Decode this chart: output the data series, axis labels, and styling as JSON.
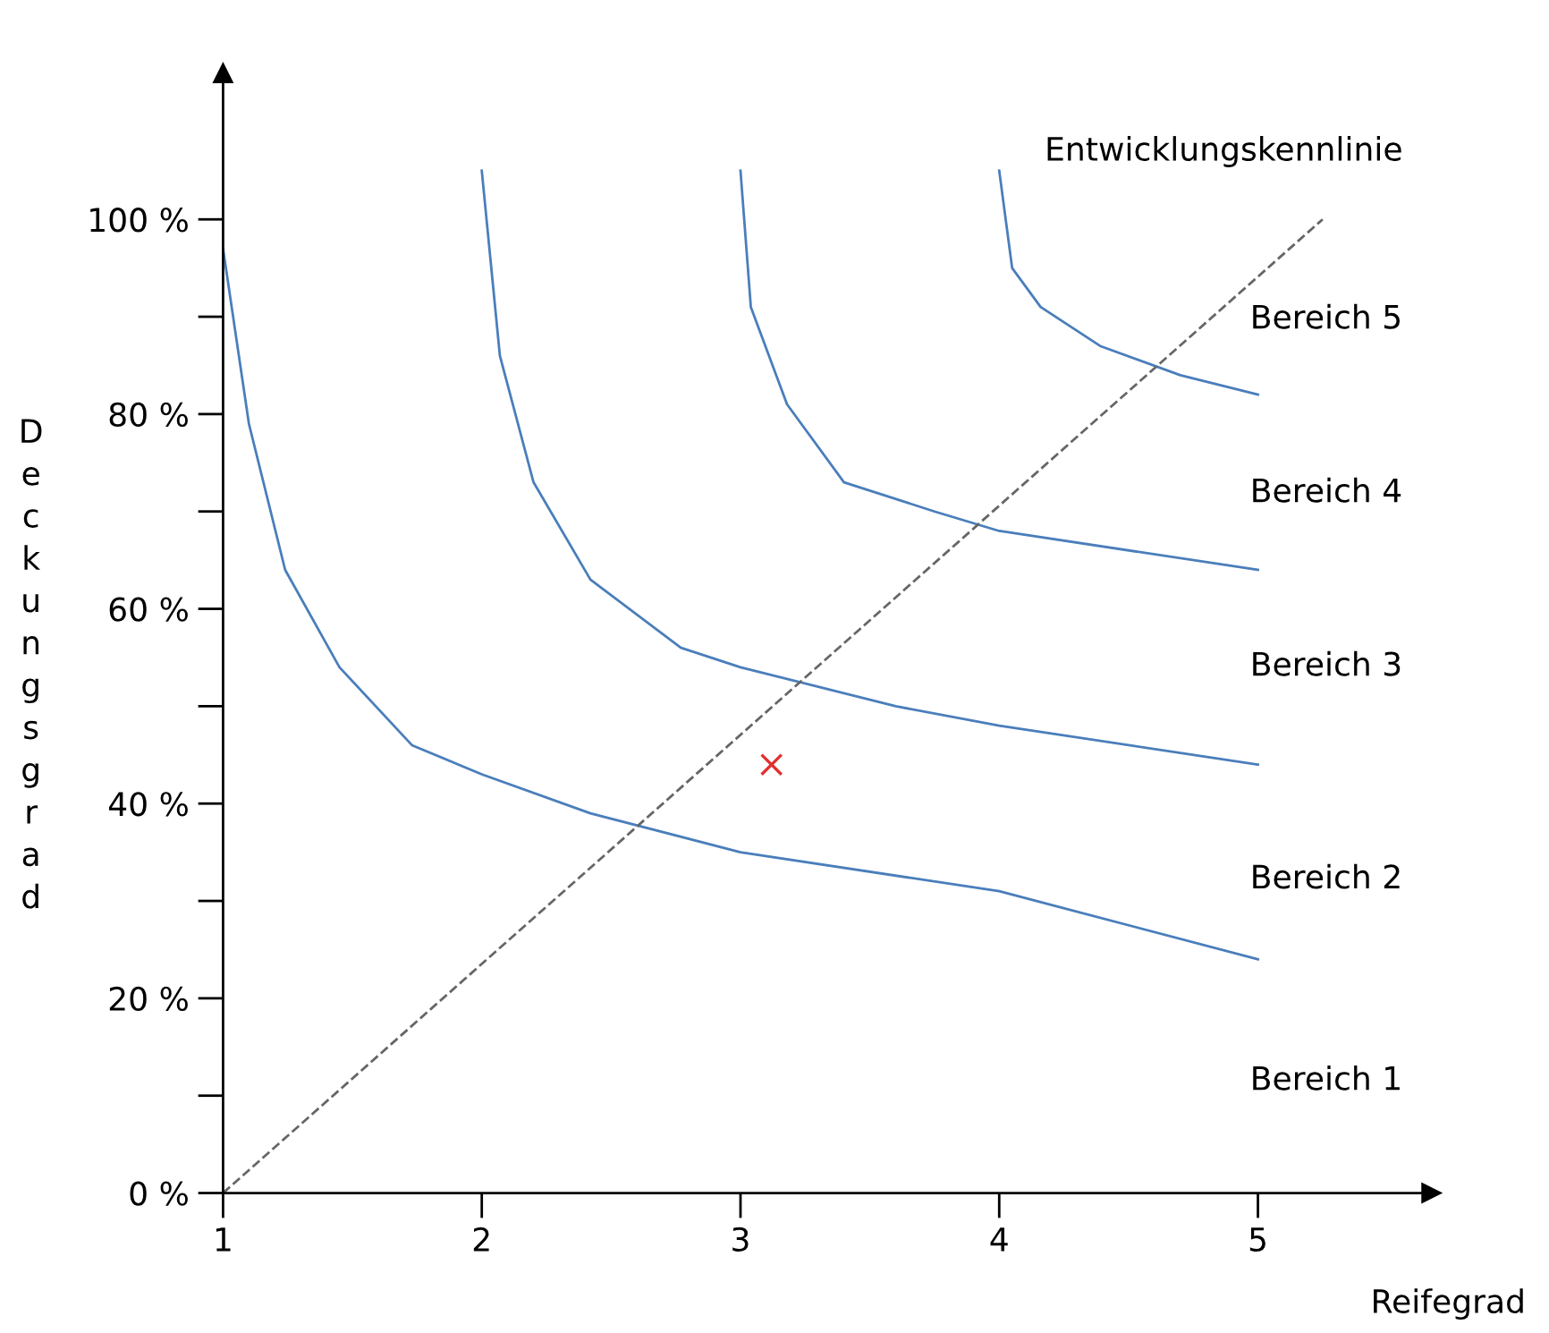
{
  "chart_data": {
    "type": "line",
    "xlabel": "Reifegrad",
    "ylabel": "Deckungsgrad",
    "xlim": [
      1,
      5.67
    ],
    "ylim": [
      0,
      115
    ],
    "xticks": [
      1,
      2,
      3,
      4,
      5
    ],
    "yticks": [
      {
        "value": 0,
        "label": "0 %"
      },
      {
        "value": 10,
        "label": null
      },
      {
        "value": 20,
        "label": "20 %"
      },
      {
        "value": 30,
        "label": null
      },
      {
        "value": 40,
        "label": "40 %"
      },
      {
        "value": 50,
        "label": null
      },
      {
        "value": 60,
        "label": "60 %"
      },
      {
        "value": 70,
        "label": null
      },
      {
        "value": 80,
        "label": "80 %"
      },
      {
        "value": 90,
        "label": null
      },
      {
        "value": 100,
        "label": "100 %"
      }
    ],
    "grid": false,
    "legend": false,
    "series": [
      {
        "color": "#4a7ebb",
        "line_style": "solid",
        "x": [
          1,
          1.1,
          1.24,
          1.45,
          1.73,
          2,
          2.42,
          3,
          4,
          5
        ],
        "values": [
          97,
          79,
          64,
          54,
          46,
          43,
          39,
          35,
          31,
          24
        ]
      },
      {
        "color": "#4a7ebb",
        "line_style": "solid",
        "x": [
          2,
          2.07,
          2.2,
          2.42,
          2.77,
          3,
          3.6,
          4,
          5
        ],
        "values": [
          105,
          86,
          73,
          63,
          56,
          54,
          50,
          48,
          44
        ]
      },
      {
        "color": "#4a7ebb",
        "line_style": "solid",
        "x": [
          3,
          3.04,
          3.18,
          3.4,
          3.75,
          4,
          5
        ],
        "values": [
          105,
          91,
          81,
          73,
          70,
          68,
          64
        ]
      },
      {
        "color": "#4a7ebb",
        "line_style": "solid",
        "x": [
          4,
          4.05,
          4.16,
          4.39,
          4.7,
          5
        ],
        "values": [
          105,
          95,
          91,
          87,
          84,
          82
        ]
      },
      {
        "color": "#666666",
        "line_style": "dashed",
        "x": [
          1,
          5.25
        ],
        "values": [
          0,
          100
        ]
      },
      {
        "type": "scatter",
        "marker": "cross",
        "color": "#e03030",
        "x": [
          3.12
        ],
        "values": [
          44
        ]
      }
    ],
    "annotations": [
      "Entwicklungskennlinie",
      "Bereich 5",
      "Bereich 4",
      "Bereich 3",
      "Bereich 2",
      "Bereich 1"
    ]
  }
}
